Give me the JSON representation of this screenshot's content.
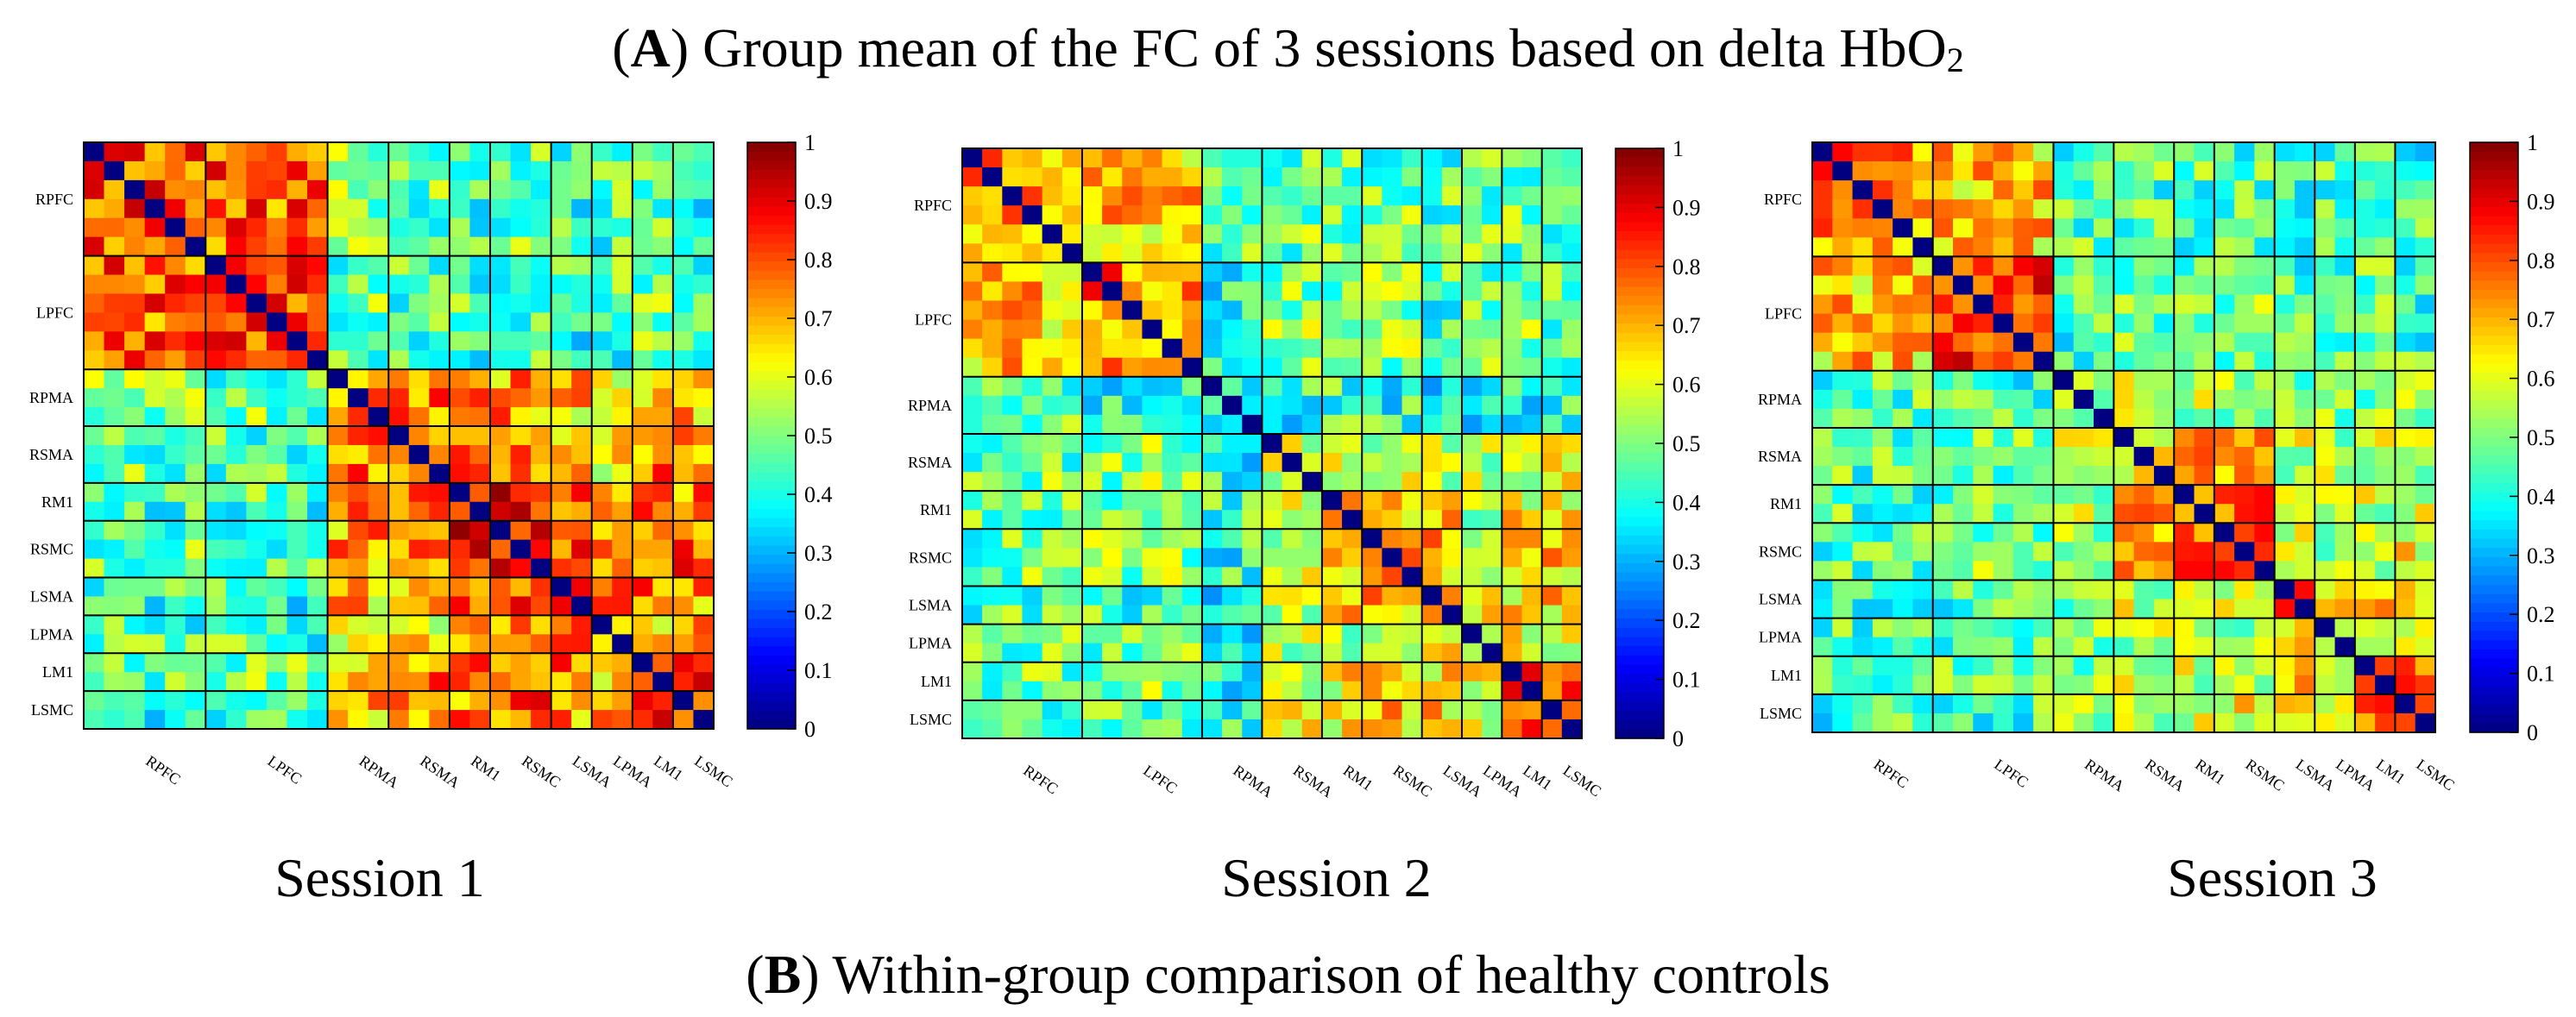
{
  "figure": {
    "title_a_letter": "A",
    "title_a_text": "Group mean of the FC of 3 sessions based on delta HbO",
    "title_a_sub": "2",
    "title_b_letter": "B",
    "title_b_text": "Within-group comparison of healthy controls"
  },
  "chart_data": [
    {
      "type": "heatmap",
      "title": "Session 1",
      "regions": [
        "RPFC",
        "LPFC",
        "RPMA",
        "RSMA",
        "RM1",
        "RSMC",
        "LSMA",
        "LPMA",
        "LM1",
        "LSMC"
      ],
      "channels_per_region": [
        6,
        6,
        3,
        3,
        2,
        3,
        2,
        2,
        2,
        2
      ],
      "block_means": [
        [
          0.8,
          0.78,
          0.5,
          0.48,
          0.45,
          0.48,
          0.42,
          0.45,
          0.48,
          0.42
        ],
        [
          0.78,
          0.82,
          0.48,
          0.45,
          0.45,
          0.45,
          0.42,
          0.45,
          0.5,
          0.42
        ],
        [
          0.5,
          0.48,
          0.72,
          0.75,
          0.72,
          0.72,
          0.68,
          0.65,
          0.72,
          0.7
        ],
        [
          0.48,
          0.45,
          0.75,
          0.8,
          0.8,
          0.78,
          0.72,
          0.65,
          0.75,
          0.72
        ],
        [
          0.45,
          0.45,
          0.72,
          0.8,
          0.85,
          0.85,
          0.75,
          0.68,
          0.78,
          0.75
        ],
        [
          0.48,
          0.45,
          0.72,
          0.78,
          0.85,
          0.88,
          0.78,
          0.7,
          0.8,
          0.78
        ],
        [
          0.42,
          0.42,
          0.68,
          0.72,
          0.75,
          0.78,
          0.8,
          0.72,
          0.75,
          0.72
        ],
        [
          0.45,
          0.45,
          0.65,
          0.65,
          0.68,
          0.7,
          0.72,
          0.72,
          0.7,
          0.68
        ],
        [
          0.48,
          0.5,
          0.72,
          0.75,
          0.78,
          0.8,
          0.75,
          0.7,
          0.85,
          0.8
        ],
        [
          0.42,
          0.42,
          0.7,
          0.72,
          0.75,
          0.78,
          0.72,
          0.68,
          0.8,
          0.85
        ]
      ],
      "colorbar": {
        "min": 0,
        "max": 1,
        "ticks": [
          "0",
          "0.1",
          "0.2",
          "0.3",
          "0.4",
          "0.5",
          "0.6",
          "0.7",
          "0.8",
          "0.9",
          "1"
        ]
      }
    },
    {
      "type": "heatmap",
      "title": "Session 2",
      "regions": [
        "RPFC",
        "LPFC",
        "RPMA",
        "RSMA",
        "RM1",
        "RSMC",
        "LSMA",
        "LPMA",
        "LM1",
        "LSMC"
      ],
      "channels_per_region": [
        6,
        6,
        3,
        3,
        2,
        3,
        2,
        2,
        2,
        2
      ],
      "block_means": [
        [
          0.72,
          0.68,
          0.45,
          0.48,
          0.48,
          0.48,
          0.45,
          0.48,
          0.48,
          0.48
        ],
        [
          0.68,
          0.75,
          0.42,
          0.5,
          0.5,
          0.5,
          0.45,
          0.48,
          0.5,
          0.48
        ],
        [
          0.45,
          0.42,
          0.35,
          0.4,
          0.45,
          0.42,
          0.4,
          0.4,
          0.42,
          0.42
        ],
        [
          0.48,
          0.5,
          0.4,
          0.58,
          0.6,
          0.58,
          0.55,
          0.52,
          0.58,
          0.6
        ],
        [
          0.48,
          0.5,
          0.45,
          0.6,
          0.7,
          0.72,
          0.65,
          0.55,
          0.62,
          0.65
        ],
        [
          0.48,
          0.5,
          0.42,
          0.58,
          0.72,
          0.82,
          0.72,
          0.58,
          0.65,
          0.68
        ],
        [
          0.45,
          0.45,
          0.4,
          0.55,
          0.65,
          0.72,
          0.8,
          0.6,
          0.62,
          0.65
        ],
        [
          0.48,
          0.48,
          0.4,
          0.52,
          0.55,
          0.58,
          0.6,
          0.62,
          0.6,
          0.6
        ],
        [
          0.48,
          0.5,
          0.42,
          0.58,
          0.62,
          0.65,
          0.62,
          0.6,
          0.78,
          0.78
        ],
        [
          0.48,
          0.48,
          0.42,
          0.6,
          0.65,
          0.68,
          0.65,
          0.6,
          0.78,
          0.85
        ]
      ],
      "colorbar": {
        "min": 0,
        "max": 1,
        "ticks": [
          "0",
          "0.1",
          "0.2",
          "0.3",
          "0.4",
          "0.5",
          "0.6",
          "0.7",
          "0.8",
          "0.9",
          "1"
        ]
      }
    },
    {
      "type": "heatmap",
      "title": "Session 3",
      "regions": [
        "RPFC",
        "LPFC",
        "RPMA",
        "RSMA",
        "RM1",
        "RSMC",
        "LSMA",
        "LPMA",
        "LM1",
        "LSMC"
      ],
      "channels_per_region": [
        6,
        6,
        3,
        3,
        2,
        3,
        2,
        2,
        2,
        2
      ],
      "block_means": [
        [
          0.75,
          0.68,
          0.45,
          0.45,
          0.45,
          0.45,
          0.42,
          0.45,
          0.45,
          0.42
        ],
        [
          0.68,
          0.8,
          0.45,
          0.48,
          0.48,
          0.48,
          0.45,
          0.45,
          0.48,
          0.45
        ],
        [
          0.45,
          0.45,
          0.55,
          0.55,
          0.55,
          0.55,
          0.5,
          0.5,
          0.52,
          0.5
        ],
        [
          0.45,
          0.48,
          0.55,
          0.62,
          0.68,
          0.68,
          0.55,
          0.52,
          0.55,
          0.55
        ],
        [
          0.45,
          0.48,
          0.55,
          0.68,
          0.78,
          0.78,
          0.58,
          0.55,
          0.58,
          0.58
        ],
        [
          0.45,
          0.48,
          0.55,
          0.68,
          0.78,
          0.85,
          0.6,
          0.55,
          0.6,
          0.62
        ],
        [
          0.42,
          0.45,
          0.5,
          0.55,
          0.58,
          0.6,
          0.78,
          0.62,
          0.65,
          0.65
        ],
        [
          0.45,
          0.45,
          0.5,
          0.52,
          0.55,
          0.55,
          0.62,
          0.62,
          0.62,
          0.62
        ],
        [
          0.45,
          0.48,
          0.52,
          0.55,
          0.58,
          0.6,
          0.65,
          0.62,
          0.78,
          0.75
        ],
        [
          0.42,
          0.45,
          0.5,
          0.55,
          0.58,
          0.62,
          0.65,
          0.62,
          0.75,
          0.85
        ]
      ],
      "colorbar": {
        "min": 0,
        "max": 1,
        "ticks": [
          "0",
          "0.1",
          "0.2",
          "0.3",
          "0.4",
          "0.5",
          "0.6",
          "0.7",
          "0.8",
          "0.9",
          "1"
        ]
      }
    }
  ]
}
